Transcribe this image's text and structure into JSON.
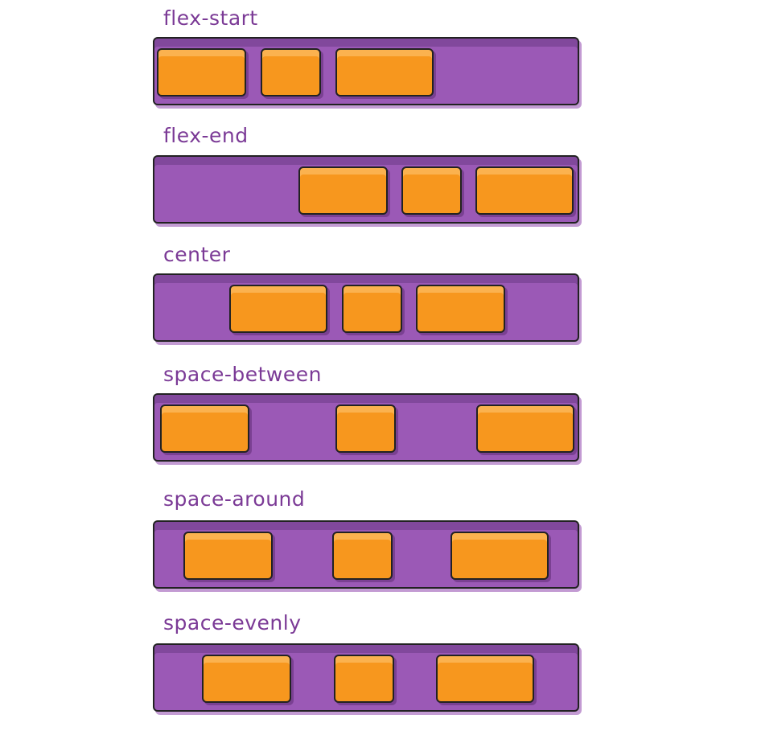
{
  "rows": [
    {
      "label": "flex-start"
    },
    {
      "label": "flex-end"
    },
    {
      "label": "center"
    },
    {
      "label": "space-between"
    },
    {
      "label": "space-around"
    },
    {
      "label": "space-evenly"
    }
  ],
  "colors": {
    "container": "#9b59b6",
    "item": "#f7971e",
    "label": "#7b3a96",
    "outline": "#222222"
  }
}
